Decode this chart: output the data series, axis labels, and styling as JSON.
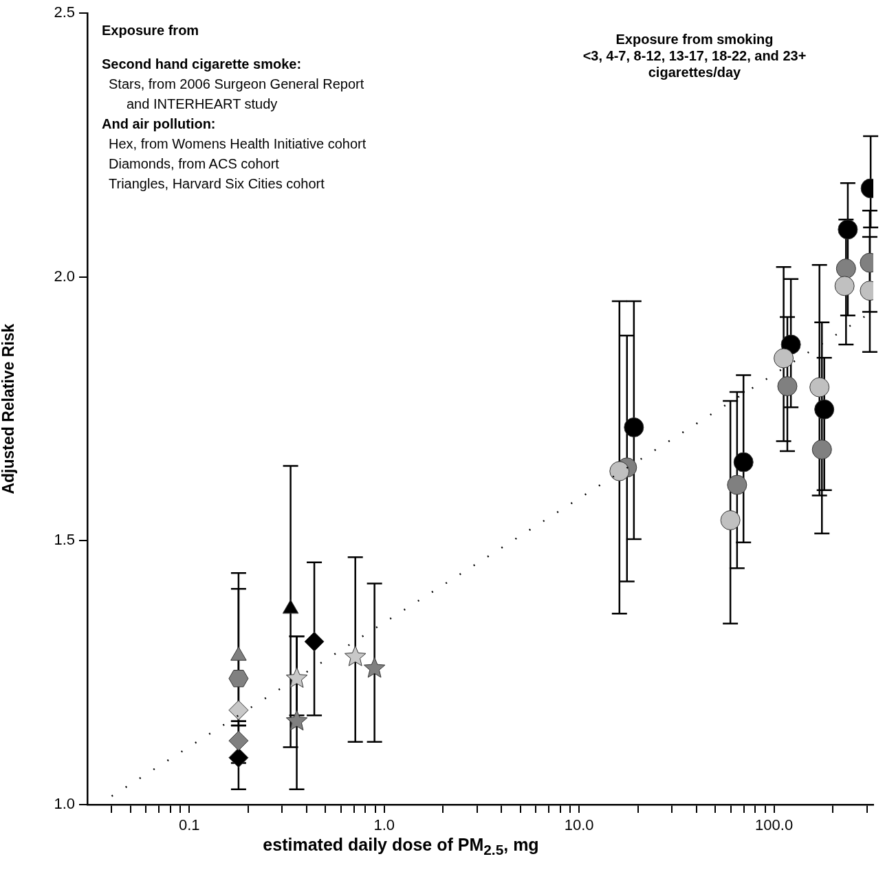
{
  "chart_data": {
    "type": "scatter",
    "xlabel": "estimated daily dose of PM$_{2.5}$, mg",
    "ylabel": "Adjusted Relative Risk",
    "annotations": [
      "Exposure from",
      "Second hand cigarette smoke:",
      "Stars, from 2006 Surgeon General Report",
      "and INTERHEART study",
      "And air pollution:",
      "Hex, from Womens Health Initiative cohort",
      "Diamonds, from ACS cohort",
      "Triangles, Harvard Six Cities cohort",
      "Exposure from smoking",
      "<3, 4-7, 8-12, 13-17, 18-22, and 23+",
      "cigarettes/day"
    ],
    "log": "x",
    "grid": false,
    "legend": false,
    "xlim": [
      0.03,
      323
    ],
    "xticks": [
      {
        "value": 0.04,
        "label": null
      },
      {
        "value": 0.05,
        "label": null
      },
      {
        "value": 0.06,
        "label": null
      },
      {
        "value": 0.07,
        "label": null
      },
      {
        "value": 0.08,
        "label": null
      },
      {
        "value": 0.09,
        "label": null
      },
      {
        "value": 0.1,
        "label": "0.1"
      },
      {
        "value": 0.2,
        "label": null
      },
      {
        "value": 0.3,
        "label": null
      },
      {
        "value": 0.4,
        "label": null
      },
      {
        "value": 0.5,
        "label": null
      },
      {
        "value": 0.6,
        "label": null
      },
      {
        "value": 0.7,
        "label": null
      },
      {
        "value": 0.8,
        "label": null
      },
      {
        "value": 0.9,
        "label": null
      },
      {
        "value": 1,
        "label": "1.0"
      },
      {
        "value": 2,
        "label": null
      },
      {
        "value": 3,
        "label": null
      },
      {
        "value": 4,
        "label": null
      },
      {
        "value": 5,
        "label": null
      },
      {
        "value": 6,
        "label": null
      },
      {
        "value": 7,
        "label": null
      },
      {
        "value": 8,
        "label": null
      },
      {
        "value": 9,
        "label": null
      },
      {
        "value": 10,
        "label": "10.0"
      },
      {
        "value": 20,
        "label": null
      },
      {
        "value": 30,
        "label": null
      },
      {
        "value": 40,
        "label": null
      },
      {
        "value": 50,
        "label": null
      },
      {
        "value": 60,
        "label": null
      },
      {
        "value": 70,
        "label": null
      },
      {
        "value": 80,
        "label": null
      },
      {
        "value": 90,
        "label": null
      },
      {
        "value": 100,
        "label": "100.0"
      },
      {
        "value": 200,
        "label": null
      },
      {
        "value": 300,
        "label": null
      }
    ],
    "ylim": [
      1.0,
      2.5
    ],
    "yticks": [
      {
        "value": 1,
        "label": "1.0"
      },
      {
        "value": 1.5,
        "label": "1.5"
      },
      {
        "value": 2,
        "label": "2.0"
      },
      {
        "value": 2.5,
        "label": "2.5"
      }
    ],
    "series": [
      {
        "type": "line",
        "color": "#000000",
        "x": [
          0.04,
          300
        ],
        "values": [
          1.016,
          1.928
        ],
        "line_style": "dotted",
        "marker": "none"
      },
      {
        "color": "#c8c8c8",
        "marker": "star",
        "x": [
          0.356,
          0.711
        ],
        "values": [
          1.239,
          1.28
        ],
        "errors": [
          [
            1.169,
            1.319
          ],
          [
            1.119,
            1.469
          ]
        ]
      },
      {
        "color": "#808080",
        "marker": "star",
        "x": [
          0.356,
          0.892
        ],
        "values": [
          1.158,
          1.258
        ],
        "errors": [
          [
            1.029,
            1.319
          ],
          [
            1.119,
            1.419
          ]
        ]
      },
      {
        "color": "#808080",
        "x": [
          0.179
        ],
        "values": [
          1.239
        ],
        "errors": [
          [
            1.15,
            1.409
          ]
        ]
      },
      {
        "color": "#c8c8c8",
        "marker": "diamond",
        "x": [
          0.179
        ],
        "values": [
          1.179
        ],
        "errors": [
          null
        ]
      },
      {
        "color": "#808080",
        "marker": "diamond",
        "x": [
          0.179
        ],
        "values": [
          1.121
        ],
        "errors": [
          [
            1.079,
            1.158
          ]
        ]
      },
      {
        "color": "#000000",
        "marker": "diamond",
        "x": [
          0.179,
          0.438
        ],
        "values": [
          1.089,
          1.309
        ],
        "errors": [
          [
            1.029,
            1.15
          ],
          [
            1.169,
            1.459
          ]
        ]
      },
      {
        "color": "#808080",
        "marker": "triangle",
        "x": [
          0.179
        ],
        "values": [
          1.282
        ],
        "errors": [
          [
            1.158,
            1.439
          ]
        ]
      },
      {
        "color": "#000000",
        "marker": "triangle",
        "x": [
          0.331
        ],
        "values": [
          1.371
        ],
        "errors": [
          [
            1.109,
            1.642
          ]
        ]
      },
      {
        "color": "#c0c0c0",
        "marker": "circle",
        "x": [
          16.1,
          59.7,
          112,
          171,
          230,
          310
        ],
        "values": [
          1.632,
          1.539,
          1.846,
          1.791,
          1.983,
          1.974
        ],
        "errors": [
          [
            1.362,
            1.954
          ],
          [
            1.343,
            1.765
          ],
          [
            1.689,
            2.019
          ],
          [
            1.586,
            2.023
          ],
          null,
          [
            1.858,
            2.076
          ]
        ]
      },
      {
        "color": "#808080",
        "marker": "circle",
        "x": [
          17.6,
          64.6,
          117,
          176,
          234,
          310
        ],
        "values": [
          1.639,
          1.606,
          1.793,
          1.673,
          2.016,
          2.027
        ],
        "errors": [
          [
            1.423,
            1.889
          ],
          [
            1.448,
            1.782
          ],
          [
            1.67,
            1.924
          ],
          [
            1.514,
            1.914
          ],
          [
            1.872,
            2.109
          ],
          [
            1.934,
            2.126
          ]
        ]
      },
      {
        "color": "#000000",
        "marker": "circle",
        "x": [
          19.1,
          69.7,
          122,
          181,
          239,
          313
        ],
        "values": [
          1.715,
          1.649,
          1.872,
          1.749,
          2.09,
          2.168
        ],
        "errors": [
          [
            1.503,
            1.954
          ],
          [
            1.497,
            1.814
          ],
          [
            1.753,
            1.996
          ],
          [
            1.596,
            1.847
          ],
          [
            1.927,
            2.178
          ],
          [
            2.094,
            2.267
          ]
        ]
      }
    ]
  }
}
